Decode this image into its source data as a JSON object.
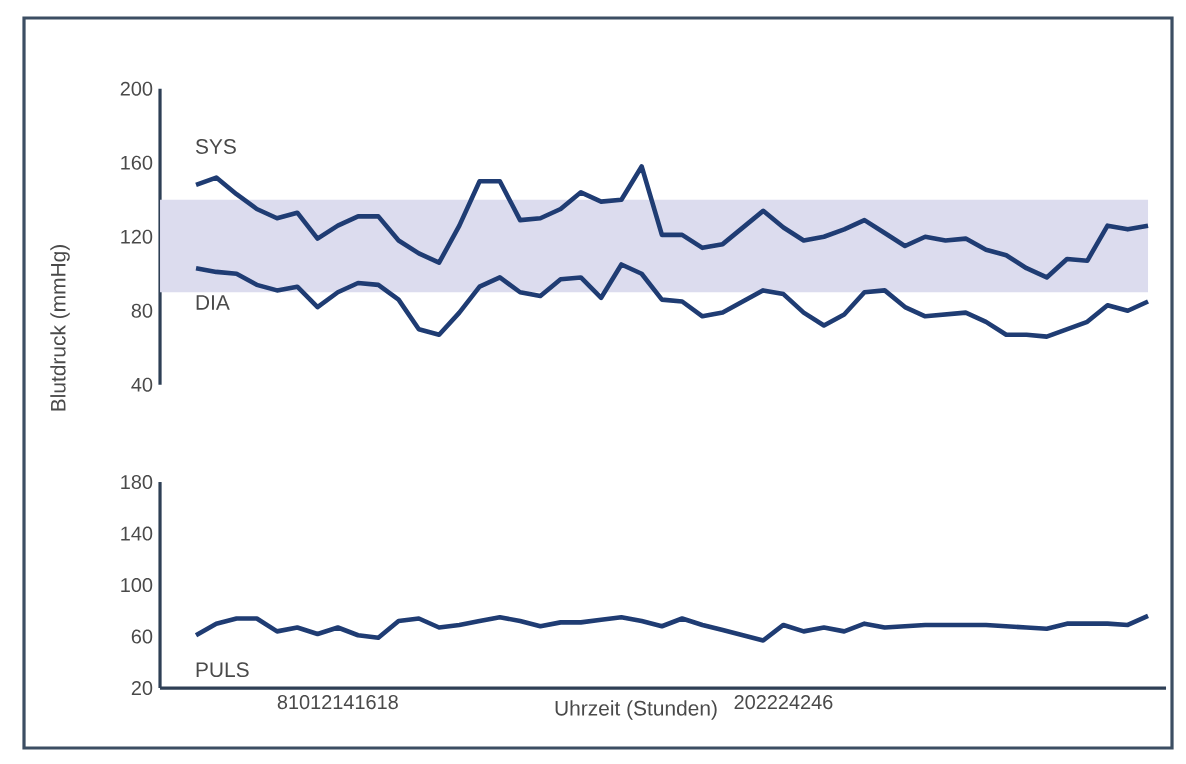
{
  "chart_data": [
    {
      "type": "line",
      "ylabel": "Blutdruck (mmHg)",
      "tick_labels": "y",
      "categories": [
        null,
        null,
        null,
        null,
        null,
        null,
        null,
        null,
        null,
        null,
        null,
        null,
        null,
        null,
        null,
        null,
        null,
        null,
        null,
        null,
        null,
        null,
        null,
        null,
        null,
        null,
        null,
        null,
        null,
        null,
        null,
        null,
        null,
        null,
        null,
        null,
        null,
        null,
        null,
        null,
        null,
        null,
        null,
        null,
        null,
        null,
        null,
        null
      ],
      "ylim": [
        40,
        200
      ],
      "yticks": [
        40,
        80,
        120,
        160,
        200
      ],
      "bands": [
        {
          "axis": "y",
          "from": 90,
          "to": 140,
          "color": "#dcdcee"
        }
      ],
      "series": [
        {
          "name": "SYS",
          "color": "#1f3c73",
          "values": [
            148,
            152,
            143,
            135,
            130,
            133,
            119,
            126,
            131,
            131,
            118,
            111,
            106,
            126,
            150,
            150,
            129,
            130,
            135,
            144,
            139,
            140,
            158,
            121,
            121,
            114,
            116,
            125,
            134,
            125,
            118,
            120,
            124,
            129,
            122,
            115,
            120,
            118,
            119,
            113,
            110,
            103,
            98,
            108,
            107,
            126,
            124,
            126
          ]
        },
        {
          "name": "DIA",
          "color": "#1f3c73",
          "values": [
            103,
            101,
            100,
            94,
            91,
            93,
            82,
            90,
            95,
            94,
            86,
            70,
            67,
            79,
            93,
            98,
            90,
            88,
            97,
            98,
            87,
            105,
            100,
            86,
            85,
            77,
            79,
            85,
            91,
            89,
            79,
            72,
            78,
            90,
            91,
            82,
            77,
            78,
            79,
            74,
            67,
            67,
            66,
            70,
            74,
            83,
            80,
            85
          ]
        }
      ]
    },
    {
      "type": "line",
      "xlabel": "Uhrzeit (Stunden)",
      "categories": [
        null,
        null,
        null,
        null,
        null,
        null,
        null,
        "81012141618",
        null,
        null,
        null,
        null,
        null,
        null,
        null,
        null,
        null,
        null,
        null,
        null,
        null,
        null,
        null,
        null,
        null,
        null,
        null,
        null,
        null,
        "202224246",
        null,
        null,
        null,
        null,
        null,
        null,
        null,
        null,
        null,
        null,
        null,
        null,
        null,
        null,
        null,
        null,
        null,
        null
      ],
      "ylim": [
        20,
        180
      ],
      "yticks": [
        20,
        60,
        100,
        140,
        180
      ],
      "series": [
        {
          "name": "PULS",
          "color": "#1f3c73",
          "values": [
            61,
            70,
            74,
            74,
            64,
            67,
            62,
            67,
            61,
            59,
            72,
            74,
            67,
            69,
            72,
            75,
            72,
            68,
            71,
            71,
            73,
            75,
            72,
            68,
            74,
            69,
            65,
            61,
            57,
            69,
            64,
            67,
            64,
            70,
            67,
            68,
            69,
            69,
            69,
            69,
            68,
            67,
            66,
            70,
            70,
            70,
            69,
            76
          ]
        }
      ]
    }
  ]
}
